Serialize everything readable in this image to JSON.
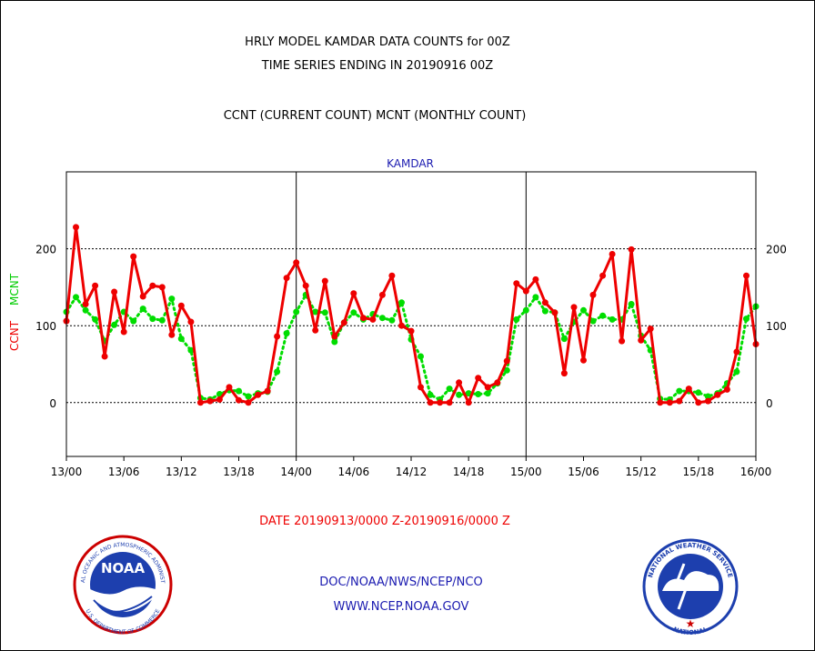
{
  "header": {
    "title_line1": "HRLY MODEL KAMDAR DATA COUNTS for 00Z",
    "title_line2": "TIME SERIES ENDING IN 20190916 00Z",
    "subtitle": "CCNT (CURRENT COUNT) MCNT (MONTHLY COUNT)"
  },
  "footer": {
    "date_range": "DATE 20190913/0000 Z-20190916/0000 Z",
    "org": "DOC/NOAA/NWS/NCEP/NCO",
    "url": "WWW.NCEP.NOAA.GOV"
  },
  "logos": {
    "noaa_text": "NOAA",
    "noaa_ring_top": "NATIONAL OCEANIC AND ATMOSPHERIC ADMINISTRATION",
    "noaa_ring_bottom": "U.S. DEPARTMENT OF COMMERCE",
    "nws_ring_top": "NATIONAL WEATHER SERVICE",
    "nws_ring_bottom": "NATIONAL"
  },
  "colors": {
    "ccnt": "#ee0000",
    "mcnt": "#00dd00",
    "title": "#000000",
    "blue": "#1a1ab0"
  },
  "chart_data": {
    "type": "line",
    "title": "KAMDAR",
    "ylabel_red": "CCNT",
    "ylabel_green": "MCNT",
    "ylim": [
      -70,
      300
    ],
    "yticks": [
      0,
      100,
      200
    ],
    "x_ticks": [
      "13/00",
      "13/06",
      "13/12",
      "13/18",
      "14/00",
      "14/06",
      "14/12",
      "14/18",
      "15/00",
      "15/06",
      "15/12",
      "15/18",
      "16/00"
    ],
    "x_day_dividers": [
      "14/00",
      "15/00"
    ],
    "x_start_hour": 0,
    "x_end_hour": 72,
    "series": [
      {
        "name": "CCNT",
        "values": [
          106,
          228,
          128,
          152,
          60,
          144,
          92,
          190,
          138,
          152,
          150,
          88,
          126,
          105,
          0,
          2,
          4,
          20,
          3,
          0,
          10,
          15,
          86,
          162,
          182,
          152,
          94,
          158,
          86,
          104,
          142,
          110,
          108,
          140,
          165,
          100,
          93,
          20,
          0,
          0,
          0,
          26,
          0,
          32,
          20,
          26,
          54,
          155,
          145,
          160,
          130,
          117,
          38,
          124,
          55,
          140,
          165,
          193,
          80,
          199,
          81,
          96,
          0,
          0,
          2,
          18,
          0,
          2,
          10,
          17,
          66,
          165,
          76
        ],
        "color": "#ee0000"
      },
      {
        "name": "MCNT",
        "values": [
          118,
          137,
          120,
          108,
          80,
          101,
          118,
          106,
          122,
          109,
          107,
          135,
          83,
          68,
          6,
          4,
          11,
          16,
          15,
          8,
          12,
          14,
          40,
          90,
          118,
          140,
          118,
          117,
          79,
          104,
          117,
          108,
          115,
          110,
          107,
          130,
          82,
          60,
          10,
          4,
          18,
          10,
          12,
          11,
          12,
          25,
          42,
          108,
          120,
          137,
          119,
          117,
          83,
          105,
          120,
          106,
          113,
          108,
          108,
          128,
          87,
          68,
          5,
          4,
          15,
          15,
          13,
          8,
          12,
          25,
          40,
          109,
          125
        ],
        "color": "#00dd00"
      }
    ]
  }
}
